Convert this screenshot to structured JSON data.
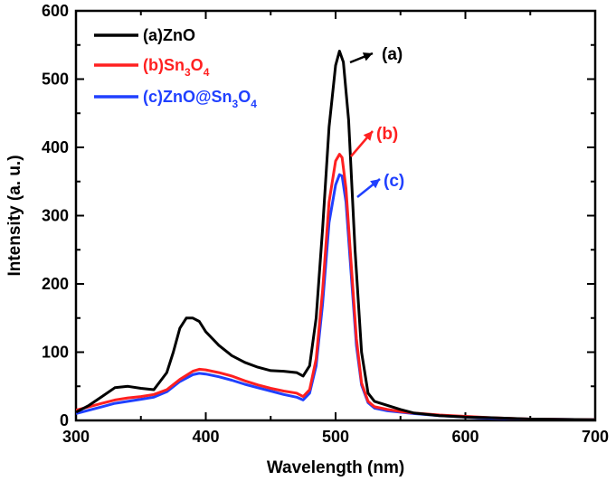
{
  "chart_data": {
    "type": "line",
    "title": "",
    "xlabel": "Wavelength (nm)",
    "ylabel": "Intensity (a. u.)",
    "xlim": [
      300,
      700
    ],
    "ylim": [
      0,
      600
    ],
    "xticks": [
      300,
      400,
      500,
      600,
      700
    ],
    "yticks": [
      0,
      100,
      200,
      300,
      400,
      500,
      600
    ],
    "xtick_labels": [
      "300",
      "400",
      "500",
      "600",
      "700"
    ],
    "ytick_labels": [
      "0",
      "100",
      "200",
      "300",
      "400",
      "500",
      "600"
    ],
    "legend_position": "top-left",
    "grid": false,
    "series": [
      {
        "name": "(a)ZnO",
        "legend_label": {
          "prefix": "(a)ZnO",
          "sub1": "",
          "mid": "",
          "sub2": ""
        },
        "color": "#000000",
        "x": [
          300,
          310,
          320,
          330,
          340,
          350,
          360,
          370,
          375,
          380,
          385,
          390,
          395,
          400,
          410,
          420,
          430,
          440,
          450,
          460,
          470,
          475,
          480,
          485,
          490,
          495,
          500,
          503,
          506,
          510,
          515,
          520,
          525,
          530,
          540,
          550,
          560,
          580,
          600,
          620,
          650,
          700
        ],
        "values": [
          12,
          22,
          35,
          48,
          50,
          47,
          45,
          70,
          100,
          135,
          150,
          150,
          145,
          130,
          110,
          95,
          85,
          78,
          73,
          72,
          70,
          65,
          80,
          150,
          280,
          430,
          520,
          541,
          525,
          440,
          250,
          100,
          40,
          28,
          22,
          16,
          11,
          7,
          5,
          4,
          2,
          1
        ]
      },
      {
        "name": "(b)Sn3O4",
        "legend_label": {
          "prefix": "(b)Sn",
          "sub1": "3",
          "mid": "O",
          "sub2": "4"
        },
        "color": "#ff2020",
        "x": [
          300,
          310,
          320,
          330,
          340,
          350,
          360,
          370,
          380,
          390,
          395,
          400,
          410,
          420,
          430,
          440,
          450,
          460,
          470,
          475,
          480,
          485,
          490,
          495,
          500,
          503,
          505,
          508,
          512,
          516,
          520,
          525,
          530,
          540,
          550,
          560,
          580,
          600,
          620,
          650,
          700
        ],
        "values": [
          15,
          20,
          25,
          30,
          33,
          35,
          38,
          45,
          60,
          72,
          75,
          74,
          70,
          65,
          58,
          52,
          47,
          43,
          40,
          35,
          45,
          90,
          190,
          320,
          380,
          390,
          385,
          340,
          230,
          120,
          55,
          28,
          20,
          16,
          13,
          11,
          8,
          6,
          4,
          2,
          1
        ]
      },
      {
        "name": "(c)ZnO@Sn3O4",
        "legend_label": {
          "prefix": "(c)ZnO@Sn",
          "sub1": "3",
          "mid": "O",
          "sub2": "4"
        },
        "color": "#2040ff",
        "x": [
          300,
          310,
          320,
          330,
          340,
          350,
          360,
          370,
          380,
          390,
          395,
          400,
          410,
          420,
          430,
          440,
          450,
          460,
          470,
          475,
          480,
          485,
          490,
          495,
          500,
          503,
          505,
          508,
          512,
          516,
          520,
          525,
          530,
          540,
          550,
          560,
          580,
          600,
          620,
          650,
          700
        ],
        "values": [
          10,
          15,
          20,
          25,
          28,
          31,
          34,
          42,
          57,
          67,
          69,
          68,
          64,
          59,
          53,
          48,
          43,
          38,
          34,
          30,
          40,
          80,
          170,
          290,
          345,
          360,
          358,
          320,
          215,
          110,
          52,
          26,
          18,
          14,
          12,
          10,
          7,
          5,
          3,
          2,
          1
        ]
      }
    ],
    "annotations": [
      {
        "text": "(a)",
        "color": "#000000",
        "x": 503,
        "y": 541
      },
      {
        "text": "(b)",
        "color": "#ff2020",
        "x": 505,
        "y": 390
      },
      {
        "text": "(c)",
        "color": "#2040ff",
        "x": 506,
        "y": 357
      }
    ]
  }
}
